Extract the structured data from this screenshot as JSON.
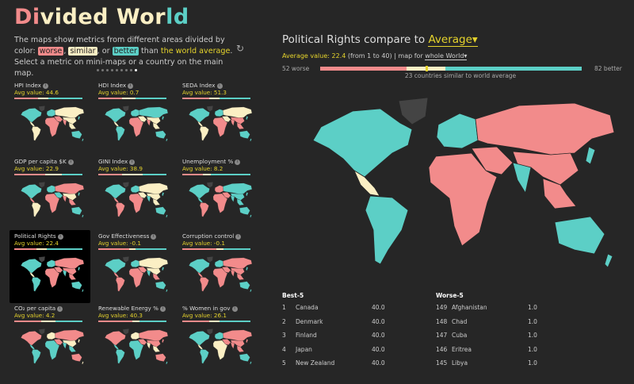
{
  "title": {
    "part1": "Di",
    "part2": "vided Wor",
    "part3": "ld"
  },
  "intro": {
    "text1": "The maps show metrics from different areas divided by color:",
    "worse": "worse",
    "sep1": ",",
    "similar": "similar",
    "sep2": ", or",
    "better": "better",
    "text2": " than ",
    "highlight": "the world average",
    "text3": ". Select a metric on mini-maps or a country on the main map."
  },
  "refresh_icon": "↻",
  "pages": {
    "count": 9,
    "active": 8
  },
  "colors": {
    "worse": "#f28b8b",
    "similar": "#fbefc4",
    "better": "#5ccfc6",
    "accent": "#e6d42c",
    "nodata": "#444444"
  },
  "metrics": [
    {
      "name": "HPI Index",
      "avg": "Avg value: 44.6",
      "split": [
        0.35,
        0.15,
        0.5
      ]
    },
    {
      "name": "HDI Index",
      "avg": "Avg value: 0.7",
      "split": [
        0.35,
        0.2,
        0.45
      ]
    },
    {
      "name": "SEDA Index",
      "avg": "Avg value: 51.3",
      "split": [
        0.4,
        0.15,
        0.45
      ]
    },
    {
      "name": "GDP per capita $K",
      "avg": "Avg value: 22.9",
      "split": [
        0.45,
        0.25,
        0.3
      ]
    },
    {
      "name": "GINI Index",
      "avg": "Avg value: 38.9",
      "split": [
        0.35,
        0.3,
        0.35
      ]
    },
    {
      "name": "Unemployment %",
      "avg": "Avg value: 8.2",
      "split": [
        0.3,
        0.12,
        0.58
      ]
    },
    {
      "name": "Political Rights",
      "avg": "Avg value: 22.4",
      "split": [
        0.33,
        0.15,
        0.52
      ],
      "selected": true
    },
    {
      "name": "Gov Effectiveness",
      "avg": "Avg value: -0.1",
      "split": [
        0.45,
        0.1,
        0.45
      ]
    },
    {
      "name": "Corruption control",
      "avg": "Avg value: -0.1",
      "split": [
        0.5,
        0.1,
        0.4
      ]
    },
    {
      "name": "CO₂ per capita",
      "avg": "Avg value: 4.2",
      "split": [
        0.4,
        0.2,
        0.4
      ]
    },
    {
      "name": "Renewable Energy %",
      "avg": "Avg value: 40.3",
      "split": [
        0.5,
        0.1,
        0.4
      ]
    },
    {
      "name": "% Women in gov",
      "avg": "Avg value: 26.1",
      "split": [
        0.4,
        0.15,
        0.45
      ]
    }
  ],
  "main": {
    "title_prefix": "Political Rights compare to ",
    "compare": "Average▾",
    "avg_label": "Average value: 22.4",
    "range": " (from 1 to 40) | map for ",
    "scope": "whole World▾",
    "worse_count": "52 worse",
    "better_count": "82 better",
    "similar_text": "23 countries similar to world average",
    "split": [
      52,
      23,
      82
    ]
  },
  "best": {
    "heading": "Best-5",
    "rows": [
      {
        "rank": "1",
        "name": "Canada",
        "value": "40.0"
      },
      {
        "rank": "2",
        "name": "Denmark",
        "value": "40.0"
      },
      {
        "rank": "3",
        "name": "Finland",
        "value": "40.0"
      },
      {
        "rank": "4",
        "name": "Japan",
        "value": "40.0"
      },
      {
        "rank": "5",
        "name": "New Zealand",
        "value": "40.0"
      }
    ]
  },
  "worst": {
    "heading": "Worse-5",
    "rows": [
      {
        "rank": "149",
        "name": "Afghanistan",
        "value": "1.0"
      },
      {
        "rank": "148",
        "name": "Chad",
        "value": "1.0"
      },
      {
        "rank": "147",
        "name": "Cuba",
        "value": "1.0"
      },
      {
        "rank": "146",
        "name": "Eritrea",
        "value": "1.0"
      },
      {
        "rank": "145",
        "name": "Libya",
        "value": "1.0"
      }
    ]
  }
}
